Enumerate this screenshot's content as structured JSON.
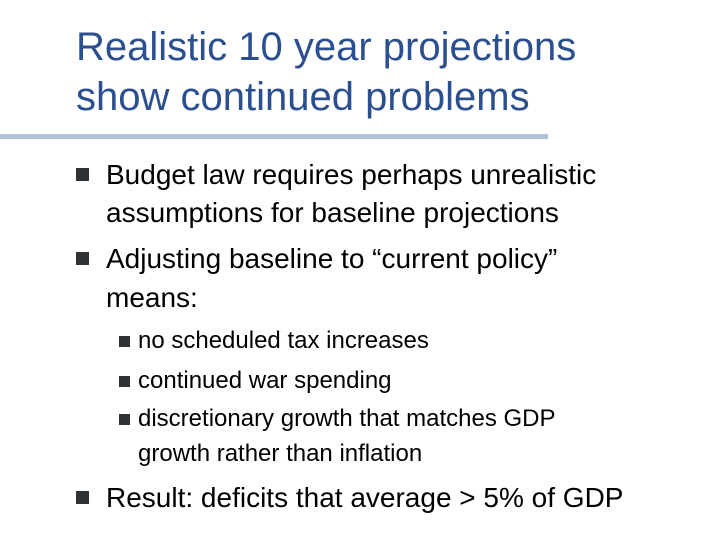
{
  "slide": {
    "title_line1": "Realistic 10 year projections",
    "title_line2": "show continued problems",
    "bullets": [
      {
        "lines": [
          "Budget law requires perhaps unrealistic",
          "assumptions for baseline projections"
        ]
      },
      {
        "lines": [
          "Adjusting baseline to “current policy”",
          "means:"
        ]
      }
    ],
    "sub_bullets": [
      {
        "lines": [
          "no scheduled tax increases"
        ]
      },
      {
        "lines": [
          "continued war spending"
        ]
      },
      {
        "lines": [
          "discretionary growth that matches GDP",
          "growth rather than inflation"
        ]
      }
    ],
    "result_bullet": {
      "lines": [
        "Result: deficits that average > 5% of GDP"
      ]
    },
    "bullet_icon": "square-bullet-icon",
    "title_color": "#2c4f8f",
    "rule_color": "#b3c2d9",
    "bullet_color": "#2f3336"
  }
}
